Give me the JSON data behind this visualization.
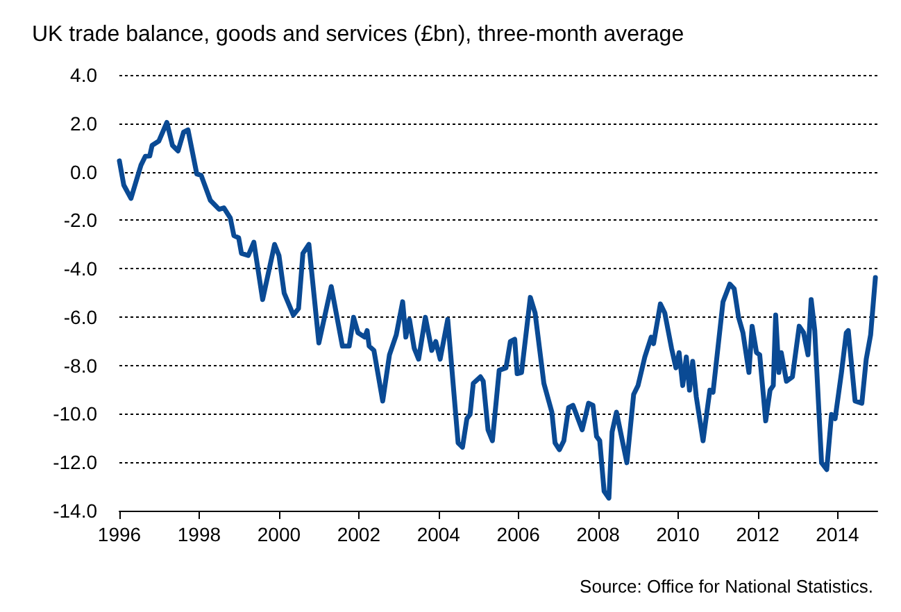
{
  "chart_data": {
    "type": "line",
    "title": "UK trade balance, goods and services (£bn), three-month average",
    "annotations": [
      "Source: Office for National Statistics."
    ],
    "x": [
      1996.0,
      1996.11,
      1996.29,
      1996.54,
      1996.65,
      1996.76,
      1996.82,
      1996.99,
      1997.19,
      1997.33,
      1997.47,
      1997.61,
      1997.72,
      1997.94,
      1998.05,
      1998.28,
      1998.5,
      1998.62,
      1998.78,
      1998.87,
      1998.99,
      1999.06,
      1999.23,
      1999.37,
      1999.59,
      1999.89,
      2000.0,
      2000.13,
      2000.36,
      2000.49,
      2000.6,
      2000.75,
      2001.0,
      2001.31,
      2001.59,
      2001.76,
      2001.87,
      2001.98,
      2002.15,
      2002.21,
      2002.26,
      2002.38,
      2002.6,
      2002.77,
      2002.94,
      2003.1,
      2003.18,
      2003.27,
      2003.39,
      2003.5,
      2003.67,
      2003.83,
      2003.93,
      2004.04,
      2004.23,
      2004.49,
      2004.6,
      2004.71,
      2004.79,
      2004.87,
      2005.05,
      2005.12,
      2005.24,
      2005.35,
      2005.52,
      2005.69,
      2005.8,
      2005.91,
      2005.97,
      2006.08,
      2006.3,
      2006.42,
      2006.64,
      2006.84,
      2006.92,
      2007.03,
      2007.14,
      2007.26,
      2007.37,
      2007.6,
      2007.76,
      2007.87,
      2007.96,
      2008.04,
      2008.15,
      2008.27,
      2008.35,
      2008.46,
      2008.72,
      2008.89,
      2009.0,
      2009.17,
      2009.33,
      2009.39,
      2009.56,
      2009.67,
      2009.84,
      2009.95,
      2010.03,
      2010.12,
      2010.21,
      2010.29,
      2010.37,
      2010.46,
      2010.63,
      2010.8,
      2010.88,
      2011.13,
      2011.3,
      2011.41,
      2011.52,
      2011.63,
      2011.78,
      2011.86,
      2011.97,
      2012.05,
      2012.2,
      2012.31,
      2012.39,
      2012.45,
      2012.53,
      2012.59,
      2012.72,
      2012.87,
      2013.04,
      2013.15,
      2013.26,
      2013.34,
      2013.43,
      2013.6,
      2013.73,
      2013.85,
      2013.94,
      2014.1,
      2014.22,
      2014.27,
      2014.44,
      2014.61,
      2014.72,
      2014.83,
      2014.95
    ],
    "series": [
      {
        "color": "#0a4a94",
        "values": [
          0.45,
          -0.55,
          -1.1,
          0.27,
          0.64,
          0.65,
          1.09,
          1.27,
          2.04,
          1.09,
          0.86,
          1.64,
          1.73,
          -0.09,
          -0.15,
          -1.18,
          -1.55,
          -1.49,
          -1.91,
          -2.64,
          -2.73,
          -3.37,
          -3.46,
          -2.91,
          -5.28,
          -3.0,
          -3.46,
          -5.01,
          -5.92,
          -5.65,
          -3.37,
          -3.0,
          -7.07,
          -4.74,
          -7.2,
          -7.2,
          -6.01,
          -6.65,
          -6.83,
          -6.56,
          -7.2,
          -7.38,
          -9.47,
          -7.56,
          -6.74,
          -5.37,
          -6.83,
          -6.1,
          -7.29,
          -7.74,
          -6.01,
          -7.38,
          -7.01,
          -7.74,
          -6.1,
          -11.2,
          -11.38,
          -10.2,
          -10.02,
          -8.74,
          -8.47,
          -8.65,
          -10.66,
          -11.11,
          -8.2,
          -8.1,
          -7.01,
          -6.92,
          -8.34,
          -8.29,
          -5.19,
          -5.83,
          -8.74,
          -9.93,
          -11.2,
          -11.48,
          -11.11,
          -9.74,
          -9.65,
          -10.66,
          -9.56,
          -9.65,
          -10.93,
          -11.11,
          -13.2,
          -13.48,
          -10.75,
          -9.93,
          -12.02,
          -9.2,
          -8.83,
          -7.65,
          -6.83,
          -7.1,
          -5.46,
          -5.83,
          -7.29,
          -8.1,
          -7.47,
          -8.83,
          -7.65,
          -9.02,
          -7.83,
          -9.29,
          -11.11,
          -9.02,
          -9.11,
          -5.37,
          -4.64,
          -4.83,
          -6.01,
          -6.65,
          -8.29,
          -6.38,
          -7.47,
          -7.56,
          -10.29,
          -9.02,
          -8.83,
          -5.92,
          -8.29,
          -7.47,
          -8.65,
          -8.47,
          -6.38,
          -6.65,
          -7.56,
          -5.28,
          -6.56,
          -12.02,
          -12.3,
          -10.02,
          -10.2,
          -8.29,
          -6.65,
          -6.56,
          -9.47,
          -9.56,
          -7.74,
          -6.74,
          -4.37
        ]
      }
    ],
    "xlim": [
      1996,
      2015
    ],
    "xticks": [
      1996,
      1998,
      2000,
      2002,
      2004,
      2006,
      2008,
      2010,
      2012,
      2014
    ],
    "ylim": [
      -14,
      4
    ],
    "yticks": [
      {
        "value": -14,
        "label": "-14.0"
      },
      {
        "value": -12,
        "label": "-12.0"
      },
      {
        "value": -10,
        "label": "-10.0"
      },
      {
        "value": -8,
        "label": "-8.0"
      },
      {
        "value": -6,
        "label": "-6.0"
      },
      {
        "value": -4,
        "label": "-4.0"
      },
      {
        "value": -2,
        "label": "-2.0"
      },
      {
        "value": 0,
        "label": "0.0"
      },
      {
        "value": 2,
        "label": "2.0"
      },
      {
        "value": 4,
        "label": "4.0"
      }
    ],
    "grid": "y",
    "marker": "none",
    "line_style": "solid"
  }
}
